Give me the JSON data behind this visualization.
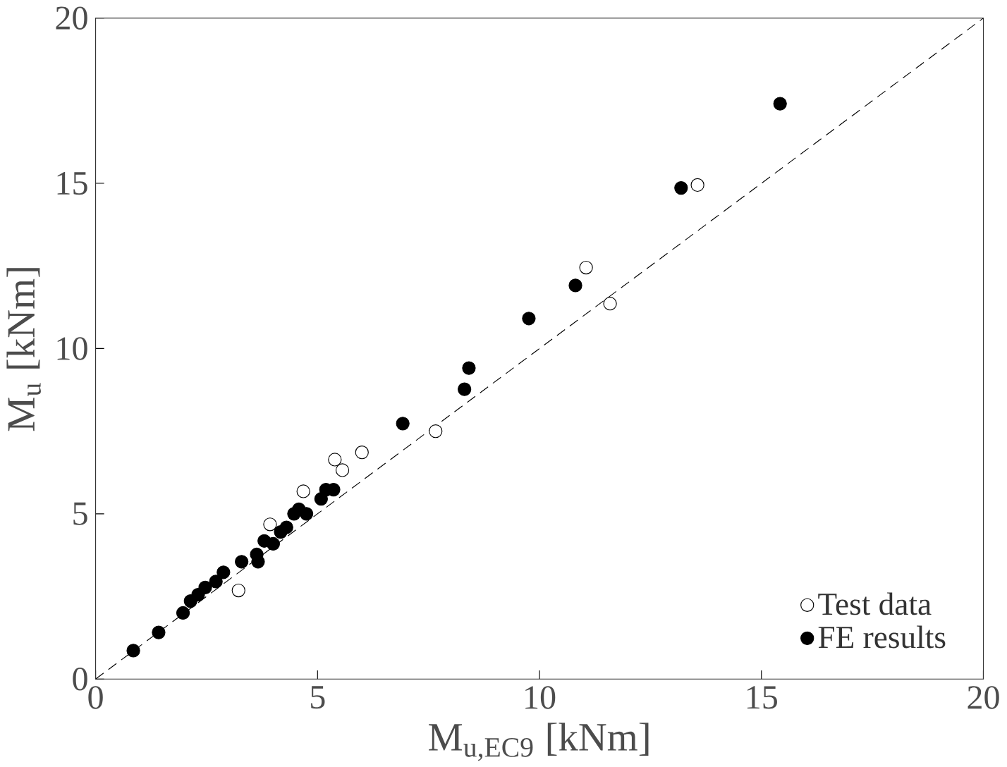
{
  "chart_data": {
    "type": "scatter",
    "xlabel": "M$_{u,EC9}$ [kNm]",
    "ylabel": "M$_{u}$ [kNm]",
    "xlim": [
      0,
      20
    ],
    "ylim": [
      0,
      20
    ],
    "xticks": [
      0,
      5,
      10,
      15,
      20
    ],
    "yticks": [
      0,
      5,
      10,
      15,
      20
    ],
    "grid": false,
    "legend": "bottom right",
    "series": [
      {
        "name": "Test data",
        "color": "#ffffff",
        "marker": "circle",
        "x": [
          3.22,
          3.93,
          4.68,
          5.39,
          5.56,
          6.0,
          7.66,
          11.05,
          11.59,
          13.56
        ],
        "values": [
          2.68,
          4.68,
          5.68,
          6.64,
          6.32,
          6.86,
          7.5,
          12.45,
          11.36,
          14.95
        ]
      },
      {
        "name": "FE results",
        "color": "#000000",
        "marker": "circle",
        "x": [
          0.85,
          1.42,
          1.97,
          2.14,
          2.31,
          2.47,
          2.71,
          2.88,
          3.29,
          3.63,
          3.66,
          3.8,
          4.0,
          4.17,
          4.3,
          4.47,
          4.58,
          4.75,
          5.08,
          5.19,
          5.36,
          6.92,
          8.31,
          8.41,
          9.76,
          10.81,
          13.19,
          15.42
        ],
        "values": [
          0.86,
          1.41,
          2.0,
          2.36,
          2.55,
          2.77,
          2.95,
          3.23,
          3.55,
          3.77,
          3.55,
          4.18,
          4.09,
          4.45,
          4.59,
          5.0,
          5.14,
          5.0,
          5.45,
          5.73,
          5.73,
          7.73,
          8.77,
          9.41,
          10.91,
          11.91,
          14.86,
          17.41
        ]
      },
      {
        "type": "line",
        "color": "#000000",
        "line_style": "dashed",
        "marker": "none",
        "x": [
          0,
          20
        ],
        "values": [
          0,
          20
        ]
      }
    ]
  }
}
